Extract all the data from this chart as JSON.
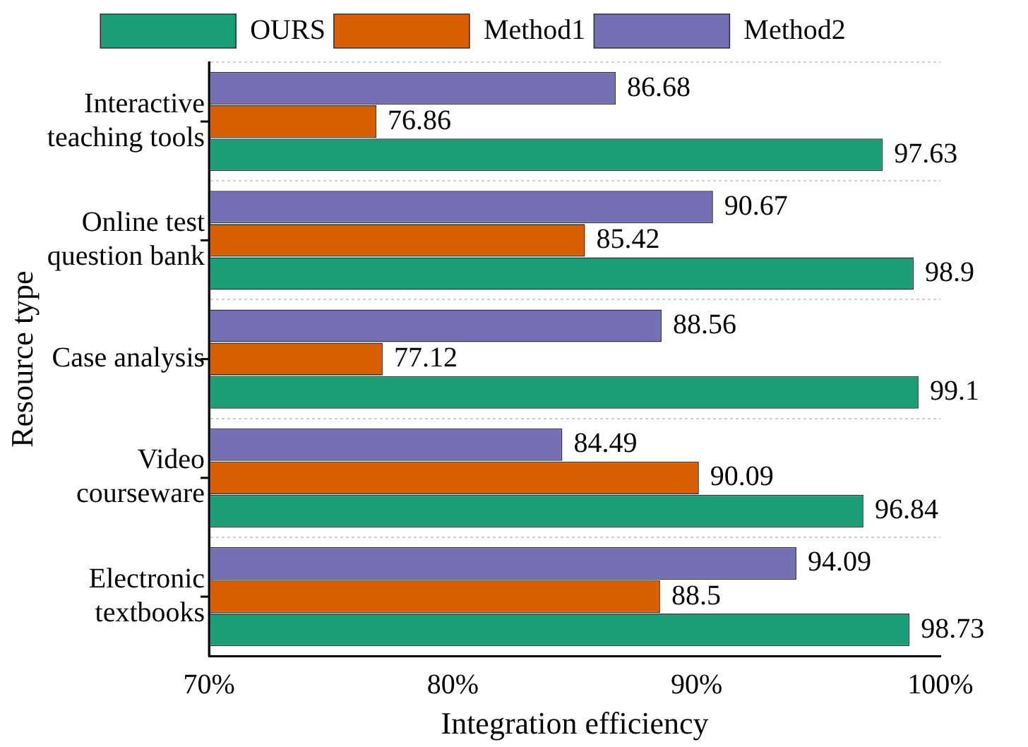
{
  "chart_data": {
    "type": "bar",
    "orientation": "horizontal",
    "xlabel": "Integration efficiency",
    "ylabel": "Resource type",
    "categories": [
      "Interactive teaching tools",
      "Online test question bank",
      "Case analysis",
      "Video courseware",
      "Electronic textbooks"
    ],
    "series": [
      {
        "name": "OURS",
        "color": "#1b9e77",
        "values": [
          97.63,
          98.9,
          99.1,
          96.84,
          98.73
        ]
      },
      {
        "name": "Method1",
        "color": "#d95f02",
        "values": [
          76.86,
          85.42,
          77.12,
          90.09,
          88.5
        ]
      },
      {
        "name": "Method2",
        "color": "#7570b3",
        "values": [
          86.68,
          90.67,
          88.56,
          84.49,
          94.09
        ]
      }
    ],
    "xlim": [
      70,
      100
    ],
    "xticks": [
      {
        "value": 70,
        "label": "70%"
      },
      {
        "value": 80,
        "label": "80%"
      },
      {
        "value": 90,
        "label": "90%"
      },
      {
        "value": 100,
        "label": "100%"
      }
    ],
    "data_labels": true,
    "grid": "y",
    "legend": "top"
  }
}
